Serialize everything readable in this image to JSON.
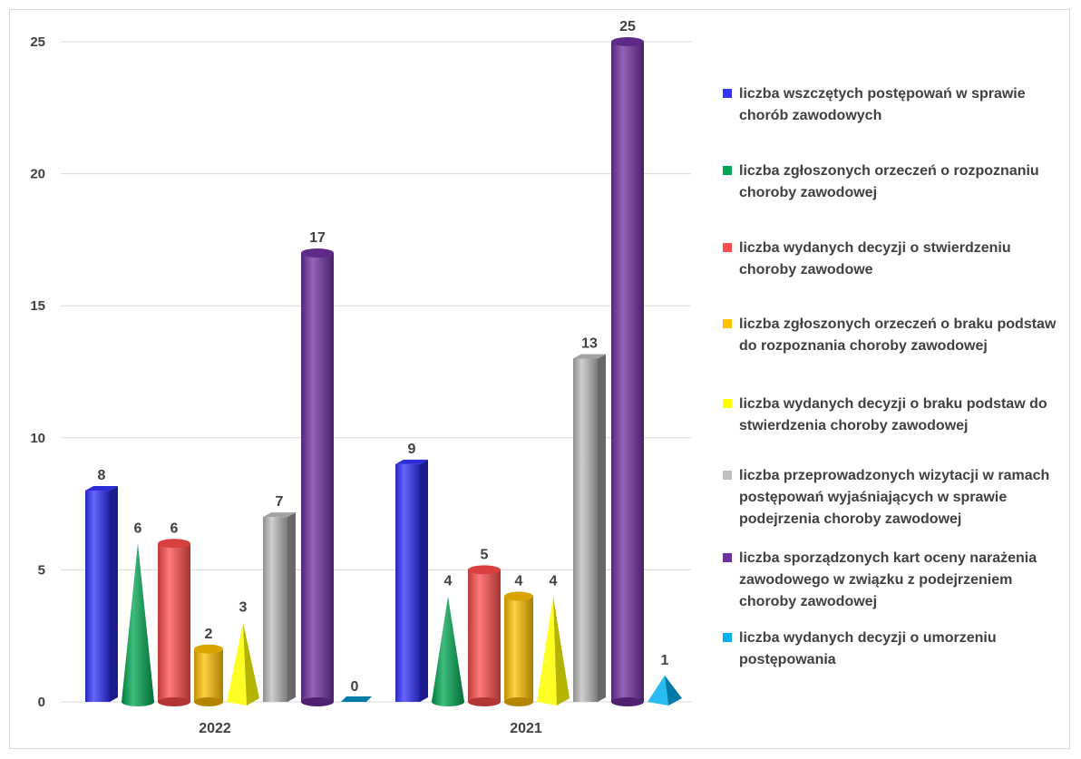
{
  "chart_data": {
    "type": "bar",
    "categories": [
      "2022",
      "2021"
    ],
    "ylim": [
      0,
      25
    ],
    "yticks": [
      0,
      5,
      10,
      15,
      20,
      25
    ],
    "grid": true,
    "legend_position": "right",
    "series": [
      {
        "name": " liczba wszczętych postępowań w sprawie chorób zawodowych",
        "values": [
          8,
          9
        ],
        "color": "#3333ff",
        "shape": "box"
      },
      {
        "name": "liczba zgłoszonych orzeczeń o rozpoznaniu choroby  zawodowej",
        "values": [
          6,
          4
        ],
        "color": "#00a651",
        "shape": "cone"
      },
      {
        "name": " liczba wydanych decyzji o stwierdzeniu choroby zawodowe",
        "values": [
          6,
          5
        ],
        "color": "#ff4d4d",
        "shape": "cylinder"
      },
      {
        "name": "liczba zgłoszonych orzeczeń o braku podstaw do rozpoznania choroby zawodowej",
        "values": [
          2,
          4
        ],
        "color": "#ffc000",
        "shape": "cylinder"
      },
      {
        "name": "liczba wydanych decyzji o braku podstaw do stwierdzenia choroby zawodowej",
        "values": [
          3,
          4
        ],
        "color": "#ffff00",
        "shape": "pyramid"
      },
      {
        "name": "liczba przeprowadzonych wizytacji w ramach postępowań wyjaśniających  w sprawie podejrzenia choroby zawodowej",
        "values": [
          7,
          13
        ],
        "color": "#bfbfbf",
        "shape": "box"
      },
      {
        "name": "liczba sporządzonych kart oceny narażenia zawodowego w związku z podejrzeniem choroby zawodowej",
        "values": [
          17,
          25
        ],
        "color": "#7030a0",
        "shape": "cylinder"
      },
      {
        "name": "liczba wydanych decyzji o umorzeniu postępowania",
        "values": [
          0,
          1
        ],
        "color": "#00b0f0",
        "shape": "pyramid"
      }
    ]
  }
}
